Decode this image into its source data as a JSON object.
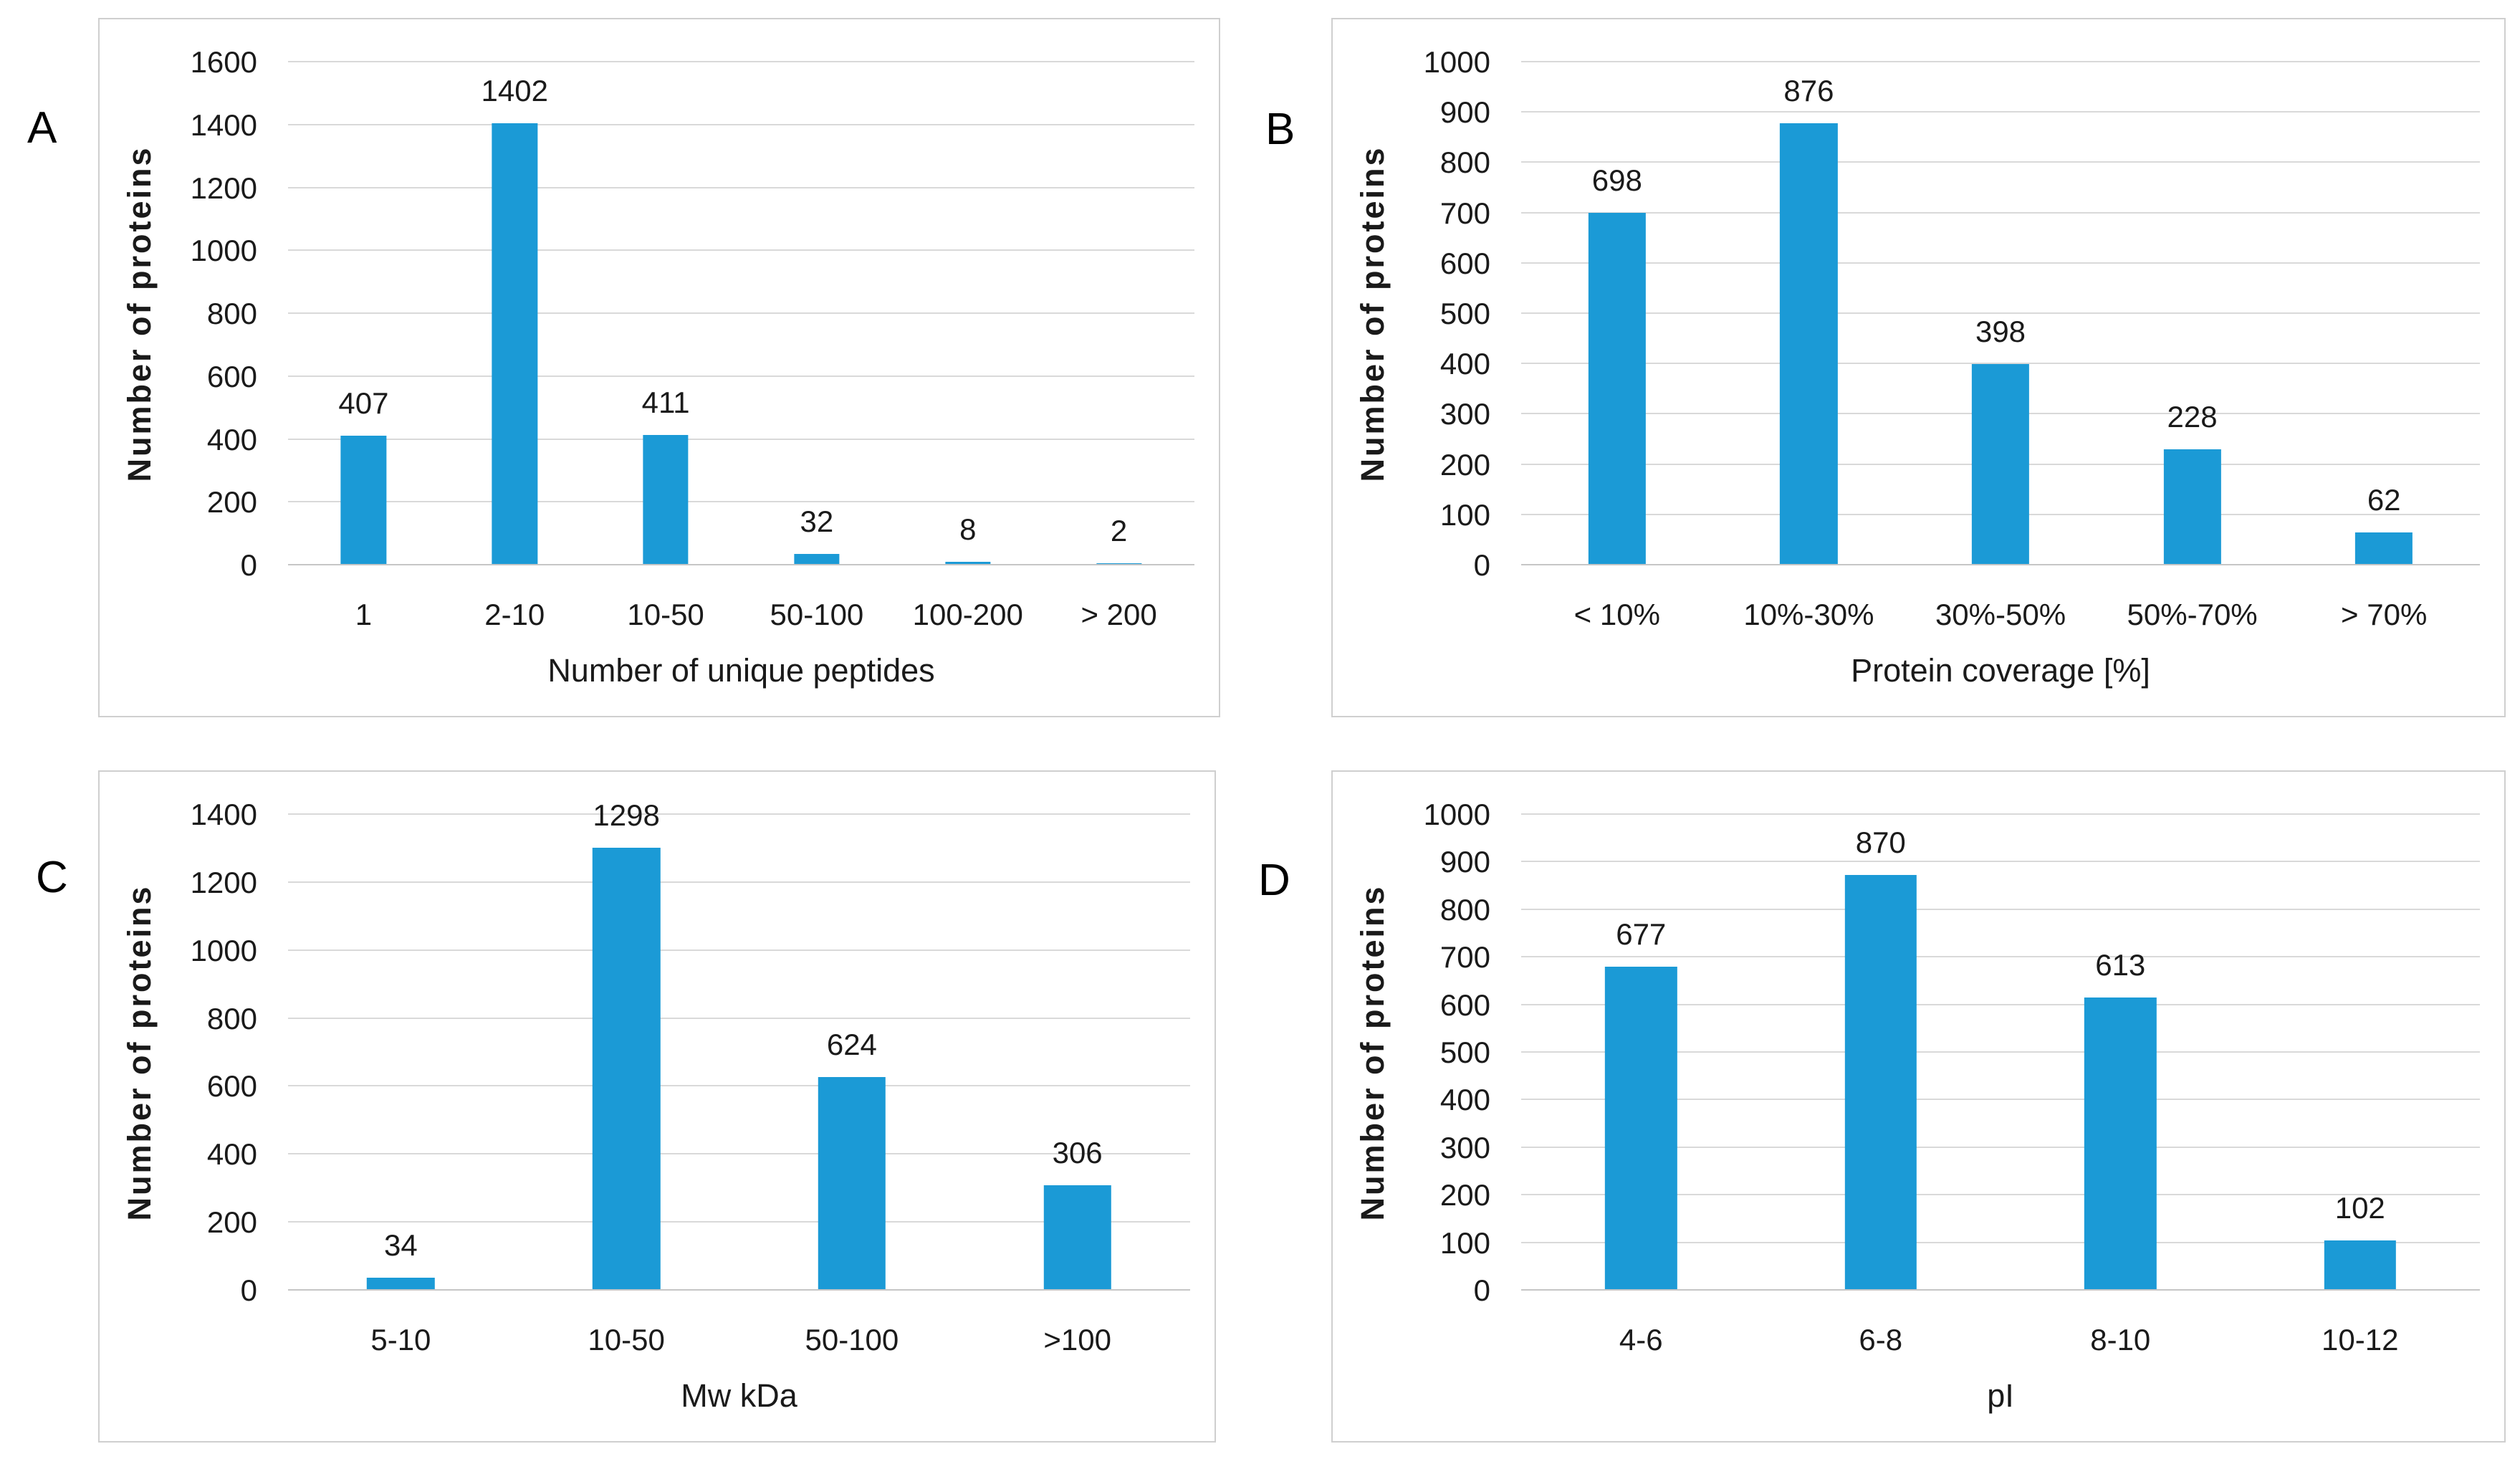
{
  "style": {
    "bar_color": "#1B9AD6",
    "grid_color": "#D9D9D9",
    "axis_line_color": "#C6C6C6",
    "panel_border_color": "#CFCFCF",
    "text_color": "#1A1A1A",
    "background": "#FFFFFF"
  },
  "chart_data": [
    {
      "panel_label": "A",
      "type": "bar",
      "categories": [
        "1",
        "2-10",
        "10-50",
        "50-100",
        "100-200",
        "> 200"
      ],
      "values": [
        407,
        1402,
        411,
        32,
        8,
        2
      ],
      "xlabel": "Number of unique peptides",
      "ylabel": "Number of proteins",
      "ylim": [
        0,
        1600
      ],
      "ytick_step": 200,
      "grid": true,
      "legend": false
    },
    {
      "panel_label": "B",
      "type": "bar",
      "categories": [
        "< 10%",
        "10%-30%",
        "30%-50%",
        "50%-70%",
        "> 70%"
      ],
      "values": [
        698,
        876,
        398,
        228,
        62
      ],
      "xlabel": "Protein coverage [%]",
      "ylabel": "Number of proteins",
      "ylim": [
        0,
        1000
      ],
      "ytick_step": 100,
      "grid": true,
      "legend": false
    },
    {
      "panel_label": "C",
      "type": "bar",
      "categories": [
        "5-10",
        "10-50",
        "50-100",
        ">100"
      ],
      "values": [
        34,
        1298,
        624,
        306
      ],
      "xlabel": "Mw kDa",
      "ylabel": "Number of proteins",
      "ylim": [
        0,
        1400
      ],
      "ytick_step": 200,
      "grid": true,
      "legend": false
    },
    {
      "panel_label": "D",
      "type": "bar",
      "categories": [
        "4-6",
        "6-8",
        "8-10",
        "10-12"
      ],
      "values": [
        677,
        870,
        613,
        102
      ],
      "xlabel": "pI",
      "ylabel": "Number of proteins",
      "ylim": [
        0,
        1000
      ],
      "ytick_step": 100,
      "grid": true,
      "legend": false
    }
  ]
}
